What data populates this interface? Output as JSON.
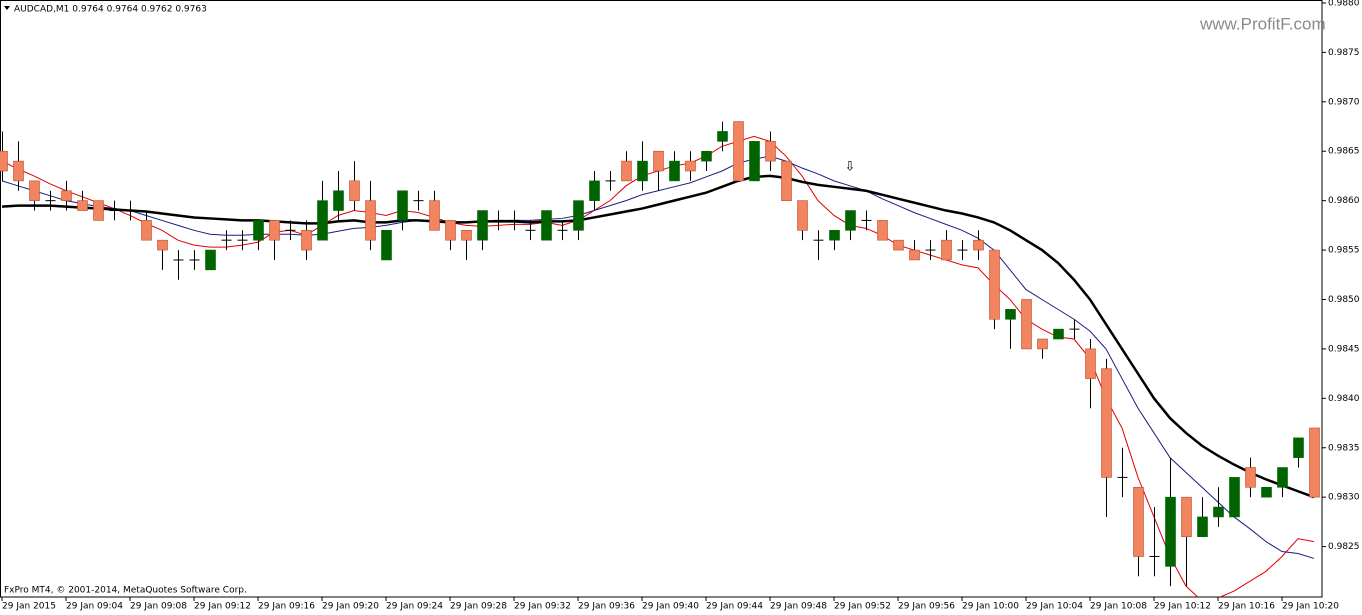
{
  "chart_data": {
    "type": "candlestick",
    "title": "AUDCAD,M1  0.9764 0.9764 0.9762 0.9763",
    "watermark": "www.ProfitF.com",
    "footer": "FxPro MT4, © 2001-2014, MetaQuotes Software Corp.",
    "up_color": "#006400",
    "down_color": "#f4845f",
    "categories": [
      "29 Jan 2015",
      null,
      null,
      null,
      "29 Jan 09:04",
      null,
      null,
      null,
      "29 Jan 09:08",
      null,
      null,
      null,
      "29 Jan 09:12",
      null,
      null,
      null,
      "29 Jan 09:16",
      null,
      null,
      null,
      "29 Jan 09:20",
      null,
      null,
      null,
      "29 Jan 09:24",
      null,
      null,
      null,
      "29 Jan 09:28",
      null,
      null,
      null,
      "29 Jan 09:32",
      null,
      null,
      null,
      "29 Jan 09:36",
      null,
      null,
      null,
      "29 Jan 09:40",
      null,
      null,
      null,
      "29 Jan 09:44",
      null,
      null,
      null,
      "29 Jan 09:48",
      null,
      null,
      null,
      "29 Jan 09:52",
      null,
      null,
      null,
      "29 Jan 09:56",
      null,
      null,
      null,
      "29 Jan 10:00",
      null,
      null,
      null,
      "29 Jan 10:04",
      null,
      null,
      null,
      "29 Jan 10:08",
      null,
      null,
      null,
      "29 Jan 10:12",
      null,
      null,
      null,
      "29 Jan 10:16",
      null,
      null,
      null,
      "29 Jan 10:20",
      null,
      null
    ],
    "open": [
      0.9865,
      0.9864,
      0.9862,
      0.986,
      0.9861,
      0.986,
      0.986,
      0.9859,
      0.9859,
      0.9858,
      0.9856,
      0.9854,
      0.9854,
      0.9853,
      0.9856,
      0.9856,
      0.9856,
      0.9858,
      0.9857,
      0.9857,
      0.9856,
      0.9859,
      0.9862,
      0.986,
      0.9854,
      0.9858,
      0.986,
      0.986,
      0.9858,
      0.9857,
      0.9856,
      0.9858,
      0.9858,
      0.9857,
      0.9856,
      0.9857,
      0.9857,
      0.986,
      0.9862,
      0.9864,
      0.9862,
      0.9865,
      0.9862,
      0.9864,
      0.9864,
      0.9866,
      0.9868,
      0.9862,
      0.9866,
      0.9864,
      0.986,
      0.9856,
      0.9856,
      0.9857,
      0.9858,
      0.9858,
      0.9856,
      0.9855,
      0.9855,
      0.9856,
      0.9855,
      0.9856,
      0.9855,
      0.9848,
      0.985,
      0.9846,
      0.9846,
      0.9847,
      0.9845,
      0.9843,
      0.9832,
      0.9831,
      0.9824,
      0.9823,
      0.983,
      0.9826,
      0.9828,
      0.9828,
      0.9833,
      0.983,
      0.9831,
      0.9834,
      0.9837
    ],
    "high": [
      0.9867,
      0.9866,
      0.9862,
      0.9861,
      0.9862,
      0.9861,
      0.986,
      0.986,
      0.986,
      0.9859,
      0.9856,
      0.9855,
      0.9855,
      0.9855,
      0.9857,
      0.9857,
      0.9858,
      0.9858,
      0.9858,
      0.9858,
      0.9862,
      0.9863,
      0.9864,
      0.9862,
      0.9857,
      0.9861,
      0.9861,
      0.9861,
      0.9858,
      0.9857,
      0.9859,
      0.9859,
      0.9859,
      0.9858,
      0.9859,
      0.9858,
      0.986,
      0.9863,
      0.9863,
      0.9865,
      0.9866,
      0.9865,
      0.9865,
      0.9865,
      0.9865,
      0.9868,
      0.9868,
      0.9866,
      0.9867,
      0.9864,
      0.986,
      0.9857,
      0.9857,
      0.9859,
      0.9859,
      0.9858,
      0.9856,
      0.9856,
      0.9856,
      0.9857,
      0.9856,
      0.9857,
      0.9855,
      0.9849,
      0.985,
      0.9846,
      0.9847,
      0.9848,
      0.9846,
      0.9844,
      0.9835,
      0.9831,
      0.9829,
      0.9834,
      0.983,
      0.983,
      0.9831,
      0.9832,
      0.9834,
      0.9831,
      0.9833,
      0.9836,
      0.9837
    ],
    "low": [
      0.9862,
      0.9861,
      0.9859,
      0.9859,
      0.9859,
      0.9859,
      0.9858,
      0.9858,
      0.9858,
      0.9856,
      0.9853,
      0.9852,
      0.9853,
      0.9853,
      0.9855,
      0.9855,
      0.9855,
      0.9854,
      0.9856,
      0.9854,
      0.9856,
      0.9858,
      0.9859,
      0.9855,
      0.9854,
      0.9857,
      0.9859,
      0.9857,
      0.9855,
      0.9854,
      0.9855,
      0.9857,
      0.9857,
      0.9856,
      0.9856,
      0.9856,
      0.9856,
      0.9859,
      0.9861,
      0.9862,
      0.9861,
      0.9861,
      0.9862,
      0.9862,
      0.9863,
      0.9865,
      0.9862,
      0.9862,
      0.9863,
      0.986,
      0.9856,
      0.9854,
      0.9855,
      0.9856,
      0.9857,
      0.9856,
      0.9855,
      0.9854,
      0.9854,
      0.9854,
      0.9854,
      0.9854,
      0.9847,
      0.9845,
      0.9845,
      0.9844,
      0.9846,
      0.9846,
      0.9839,
      0.9828,
      0.983,
      0.9822,
      0.9822,
      0.9821,
      0.9821,
      0.9826,
      0.9827,
      0.9828,
      0.983,
      0.983,
      0.983,
      0.9833,
      0.983
    ],
    "close": [
      0.9863,
      0.9862,
      0.986,
      0.986,
      0.986,
      0.9859,
      0.9858,
      0.9859,
      0.9859,
      0.9856,
      0.9855,
      0.9854,
      0.9854,
      0.9855,
      0.9856,
      0.9856,
      0.9858,
      0.9856,
      0.9857,
      0.9855,
      0.986,
      0.9861,
      0.986,
      0.9856,
      0.9857,
      0.9861,
      0.986,
      0.9857,
      0.9856,
      0.9856,
      0.9859,
      0.9858,
      0.9858,
      0.9857,
      0.9859,
      0.9857,
      0.986,
      0.9862,
      0.9862,
      0.9862,
      0.9864,
      0.9863,
      0.9864,
      0.9863,
      0.9865,
      0.9867,
      0.9862,
      0.9866,
      0.9864,
      0.986,
      0.9857,
      0.9856,
      0.9857,
      0.9859,
      0.9858,
      0.9856,
      0.9855,
      0.9854,
      0.9855,
      0.9854,
      0.9855,
      0.9855,
      0.9848,
      0.9849,
      0.9845,
      0.9845,
      0.9847,
      0.9847,
      0.9842,
      0.9832,
      0.9832,
      0.9824,
      0.9824,
      0.983,
      0.9826,
      0.9828,
      0.9829,
      0.9832,
      0.9831,
      0.9831,
      0.9833,
      0.9836,
      0.983
    ],
    "moving_averages": [
      {
        "color": "#e00000",
        "width": 1,
        "values": [
          0.9864,
          0.98632,
          0.98625,
          0.98617,
          0.9861,
          0.98604,
          0.98598,
          0.98592,
          0.98585,
          0.98577,
          0.9857,
          0.9856,
          0.98555,
          0.98553,
          0.98553,
          0.98555,
          0.98558,
          0.98568,
          0.9857,
          0.98565,
          0.98575,
          0.98585,
          0.9859,
          0.98588,
          0.98585,
          0.9859,
          0.98588,
          0.98583,
          0.98578,
          0.98575,
          0.98574,
          0.98575,
          0.98576,
          0.98576,
          0.98578,
          0.98575,
          0.9858,
          0.9859,
          0.986,
          0.98615,
          0.98625,
          0.9863,
          0.98635,
          0.98638,
          0.98645,
          0.98655,
          0.9866,
          0.98665,
          0.9866,
          0.98645,
          0.98625,
          0.986,
          0.98585,
          0.98575,
          0.98572,
          0.98565,
          0.98555,
          0.9855,
          0.98545,
          0.9854,
          0.98535,
          0.98532,
          0.98515,
          0.985,
          0.9848,
          0.9847,
          0.98462,
          0.9846,
          0.9844,
          0.984,
          0.9837,
          0.9832,
          0.9828,
          0.9824,
          0.9821,
          0.98195,
          0.98198,
          0.98205,
          0.98215,
          0.98225,
          0.9824,
          0.98258,
          0.98255
        ]
      },
      {
        "color": "#1c1c80",
        "width": 1,
        "values": [
          0.9862,
          0.98615,
          0.9861,
          0.98605,
          0.986,
          0.98597,
          0.98594,
          0.98592,
          0.9859,
          0.98585,
          0.9858,
          0.98575,
          0.9857,
          0.98566,
          0.98565,
          0.98565,
          0.98566,
          0.98566,
          0.98566,
          0.98565,
          0.98566,
          0.98569,
          0.98572,
          0.98573,
          0.98575,
          0.98578,
          0.9858,
          0.9858,
          0.98579,
          0.98578,
          0.98579,
          0.9858,
          0.9858,
          0.9858,
          0.98581,
          0.98582,
          0.98585,
          0.9859,
          0.98595,
          0.986,
          0.98606,
          0.9861,
          0.98614,
          0.98618,
          0.98624,
          0.9863,
          0.98638,
          0.98642,
          0.98645,
          0.9864,
          0.98633,
          0.98627,
          0.9862,
          0.98615,
          0.9861,
          0.98602,
          0.98595,
          0.98588,
          0.98582,
          0.98576,
          0.9857,
          0.98562,
          0.9855,
          0.9853,
          0.9851,
          0.985,
          0.9849,
          0.9848,
          0.98468,
          0.9845,
          0.9842,
          0.9839,
          0.98365,
          0.9834,
          0.98325,
          0.9831,
          0.98295,
          0.9828,
          0.98268,
          0.98255,
          0.98245,
          0.98243,
          0.98238
        ]
      },
      {
        "color": "#000000",
        "width": 2.5,
        "values": [
          0.98594,
          0.98595,
          0.98595,
          0.98595,
          0.98594,
          0.98593,
          0.98592,
          0.98591,
          0.9859,
          0.98589,
          0.98587,
          0.98585,
          0.98583,
          0.98582,
          0.98581,
          0.9858,
          0.9858,
          0.98579,
          0.98578,
          0.98577,
          0.98577,
          0.98579,
          0.9858,
          0.98578,
          0.98578,
          0.9858,
          0.9858,
          0.98579,
          0.98578,
          0.98578,
          0.98579,
          0.98579,
          0.98579,
          0.98578,
          0.98579,
          0.98579,
          0.9858,
          0.98583,
          0.98586,
          0.98589,
          0.98592,
          0.98596,
          0.986,
          0.98604,
          0.98608,
          0.98614,
          0.9862,
          0.98624,
          0.98625,
          0.98623,
          0.98619,
          0.98616,
          0.98614,
          0.98612,
          0.9861,
          0.98606,
          0.98602,
          0.98598,
          0.98594,
          0.9859,
          0.98587,
          0.98583,
          0.98578,
          0.9857,
          0.9856,
          0.9855,
          0.98537,
          0.9852,
          0.985,
          0.98475,
          0.9845,
          0.98425,
          0.984,
          0.9838,
          0.98365,
          0.98352,
          0.98342,
          0.98333,
          0.98325,
          0.98318,
          0.98312,
          0.98306,
          0.983
        ]
      }
    ],
    "ylim": [
      0.98199,
      0.98803
    ],
    "yticks": [
      {
        "value": 0.988,
        "label": "0.9880"
      },
      0.9875,
      {
        "value": 0.987,
        "label": "0.9870"
      },
      0.9865,
      {
        "value": 0.986,
        "label": "0.9860"
      },
      0.9855,
      {
        "value": 0.985,
        "label": "0.9850"
      },
      0.9845,
      {
        "value": 0.984,
        "label": "0.9840"
      },
      0.9835,
      {
        "value": 0.983,
        "label": "0.9830"
      },
      0.9825
    ]
  }
}
